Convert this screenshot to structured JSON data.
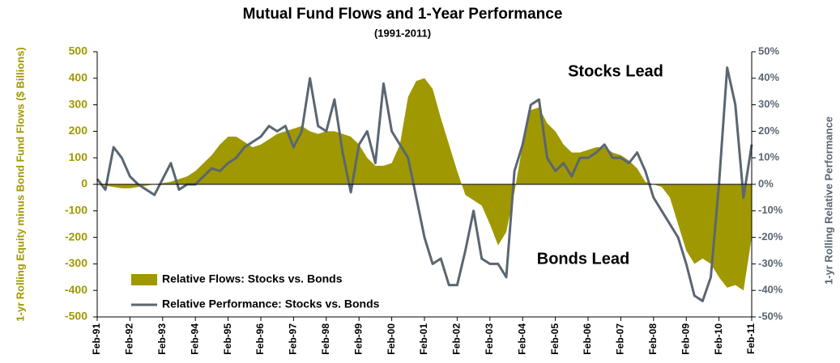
{
  "chart_data": {
    "type": "area-line",
    "title": "Mutual Fund Flows and 1-Year Performance",
    "subtitle": "(1991-2011)",
    "y_label": "1-yr Rolling Equity minus Bond Fund Flows ($ Billions)",
    "y2_label": "1-yr Rolling Relative Performance",
    "annotations": [
      "Stocks Lead",
      "Bonds Lead"
    ],
    "legend": "lower left",
    "categories": [
      "Feb-91",
      null,
      null,
      null,
      "Feb-92",
      null,
      null,
      null,
      "Feb-93",
      null,
      null,
      null,
      "Feb-94",
      null,
      null,
      null,
      "Feb-95",
      null,
      null,
      null,
      "Feb-96",
      null,
      null,
      null,
      "Feb-97",
      null,
      null,
      null,
      "Feb-98",
      null,
      null,
      null,
      "Feb-99",
      null,
      null,
      null,
      "Feb-00",
      null,
      null,
      null,
      "Feb-01",
      null,
      null,
      null,
      "Feb-02",
      null,
      null,
      null,
      "Feb-03",
      null,
      null,
      null,
      "Feb-04",
      null,
      null,
      null,
      "Feb-05",
      null,
      null,
      null,
      "Feb-06",
      null,
      null,
      null,
      "Feb-07",
      null,
      null,
      null,
      "Feb-08",
      null,
      null,
      null,
      "Feb-09",
      null,
      null,
      null,
      "Feb-10",
      null,
      null,
      null,
      "Feb-11"
    ],
    "series": [
      {
        "name": "Relative Flows: Stocks vs. Bonds",
        "color": "#a09800",
        "kind": "area",
        "values": [
          0,
          -5,
          -10,
          -15,
          -15,
          -10,
          -5,
          0,
          5,
          10,
          20,
          30,
          50,
          80,
          110,
          150,
          180,
          180,
          160,
          140,
          150,
          170,
          190,
          200,
          210,
          220,
          200,
          190,
          200,
          200,
          190,
          180,
          150,
          100,
          70,
          70,
          80,
          150,
          330,
          390,
          400,
          360,
          250,
          150,
          50,
          -40,
          -60,
          -80,
          -150,
          -230,
          -180,
          -30,
          150,
          280,
          290,
          230,
          200,
          150,
          120,
          120,
          130,
          140,
          140,
          120,
          110,
          90,
          60,
          10,
          0,
          -10,
          -50,
          -150,
          -250,
          -300,
          -280,
          -300,
          -350,
          -390,
          -380,
          -400,
          -200
        ]
      },
      {
        "name": "Relative Performance: Stocks vs. Bonds",
        "color": "#5a6672",
        "kind": "line",
        "axis": "y2",
        "values": [
          2,
          -2,
          14,
          10,
          3,
          0,
          -2,
          -4,
          2,
          8,
          -2,
          0,
          0,
          3,
          6,
          5,
          8,
          10,
          14,
          16,
          18,
          22,
          20,
          22,
          14,
          20,
          40,
          22,
          20,
          32,
          12,
          -3,
          15,
          20,
          8,
          38,
          20,
          15,
          10,
          -5,
          -20,
          -30,
          -28,
          -38,
          -38,
          -25,
          -10,
          -28,
          -30,
          -30,
          -35,
          5,
          15,
          30,
          32,
          10,
          5,
          8,
          3,
          10,
          10,
          12,
          15,
          10,
          10,
          8,
          12,
          5,
          -5,
          -10,
          -15,
          -20,
          -30,
          -42,
          -44,
          -35,
          0,
          44,
          30,
          -5,
          15
        ]
      }
    ],
    "ylim": [
      -500,
      500
    ],
    "yticks": [
      -500,
      -400,
      -300,
      -200,
      -100,
      0,
      100,
      200,
      300,
      400,
      500
    ],
    "y2lim": [
      -50,
      50
    ],
    "y2ticks": [
      {
        "value": -50,
        "label": "-50%"
      },
      {
        "value": -40,
        "label": "-40%"
      },
      {
        "value": -30,
        "label": "-30%"
      },
      {
        "value": -20,
        "label": "-20%"
      },
      {
        "value": -10,
        "label": "-10%"
      },
      {
        "value": 0,
        "label": "0%"
      },
      {
        "value": 10,
        "label": "10%"
      },
      {
        "value": 20,
        "label": "20%"
      },
      {
        "value": 30,
        "label": "30%"
      },
      {
        "value": 40,
        "label": "40%"
      },
      {
        "value": 50,
        "label": "50%"
      }
    ]
  }
}
